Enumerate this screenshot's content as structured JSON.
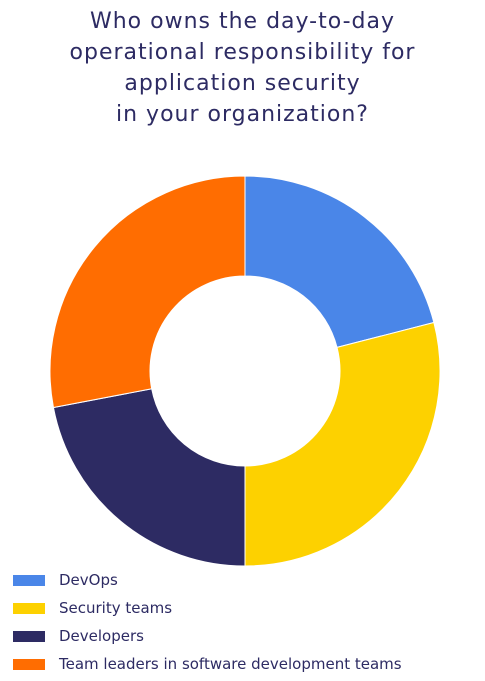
{
  "title_lines": [
    "Who owns the day-to-day",
    "operational responsibility for",
    "application security",
    "in your organization?"
  ],
  "chart_data": {
    "type": "pie",
    "subtype": "donut",
    "title": "Who owns the day-to-day operational responsibility for application security in your organization?",
    "categories": [
      "DevOps",
      "Security teams",
      "Developers",
      "Team leaders in software development teams"
    ],
    "values": [
      21,
      29,
      22,
      28
    ],
    "unit": "%",
    "colors": [
      "#4a86e8",
      "#fdd100",
      "#2d2b63",
      "#ff6d01"
    ],
    "legend_position": "bottom-left"
  }
}
